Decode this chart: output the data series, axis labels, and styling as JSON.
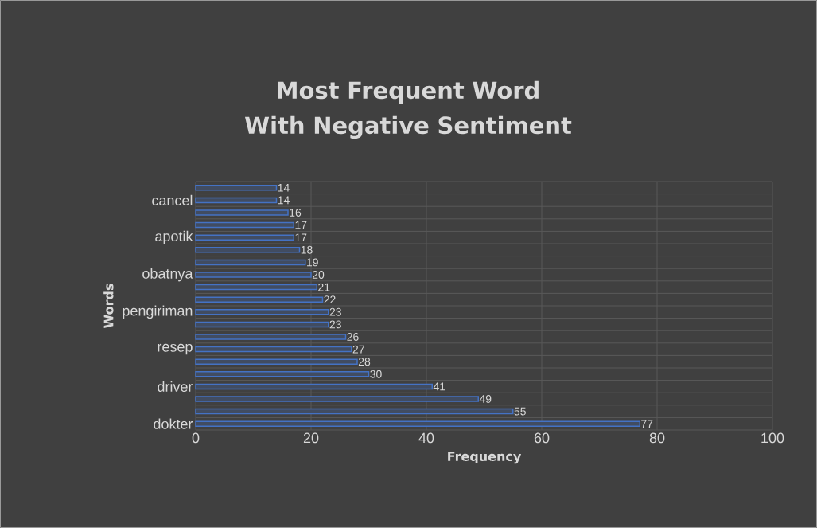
{
  "chart_data": {
    "type": "bar",
    "orientation": "horizontal",
    "title": "Most Frequent Word With Negative Sentiment",
    "xlabel": "Frequency",
    "ylabel": "Words",
    "categories": [
      null,
      "cancel",
      null,
      null,
      "apotik",
      null,
      null,
      "obatnya",
      null,
      null,
      "pengiriman",
      null,
      null,
      "resep",
      null,
      null,
      "driver",
      null,
      null,
      "dokter"
    ],
    "values": [
      14,
      14,
      16,
      17,
      17,
      18,
      19,
      20,
      21,
      22,
      23,
      23,
      26,
      27,
      28,
      30,
      41,
      49,
      55,
      77
    ],
    "color": "#4472c4",
    "xlim": [
      0,
      100
    ],
    "xticks": [
      0,
      20,
      40,
      60,
      80,
      100
    ],
    "grid": true,
    "data_labels": true
  }
}
